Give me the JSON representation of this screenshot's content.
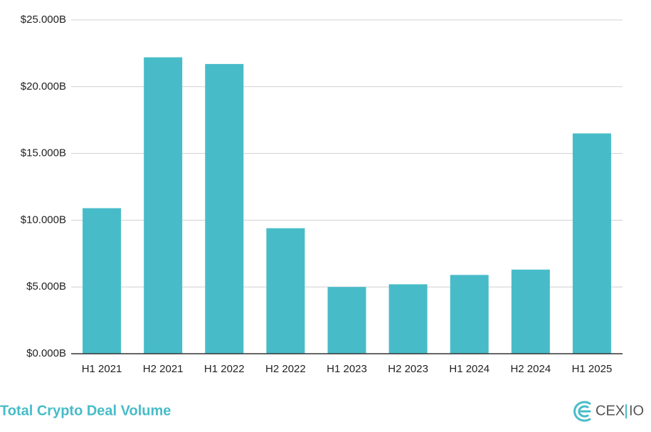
{
  "chart_data": {
    "type": "bar",
    "title": "Total Crypto Deal Volume",
    "categories": [
      "H1 2021",
      "H2 2021",
      "H1 2022",
      "H2 2022",
      "H1 2023",
      "H2 2023",
      "H1 2024",
      "H2 2024",
      "H1 2025"
    ],
    "values": [
      10.9,
      22.2,
      21.7,
      9.4,
      5.0,
      5.2,
      5.9,
      6.3,
      16.5
    ],
    "color": "#47bcc8",
    "ylim": [
      0,
      25
    ],
    "yticks": [
      {
        "value": 0,
        "label": "$0.000B"
      },
      {
        "value": 5,
        "label": "$5.000B"
      },
      {
        "value": 10,
        "label": "$10.000B"
      },
      {
        "value": 15,
        "label": "$15.000B"
      },
      {
        "value": 20,
        "label": "$20.000B"
      },
      {
        "value": 25,
        "label": "$25.000B"
      }
    ],
    "grid": true
  },
  "logo": {
    "left": "CEX",
    "right": "IO"
  }
}
